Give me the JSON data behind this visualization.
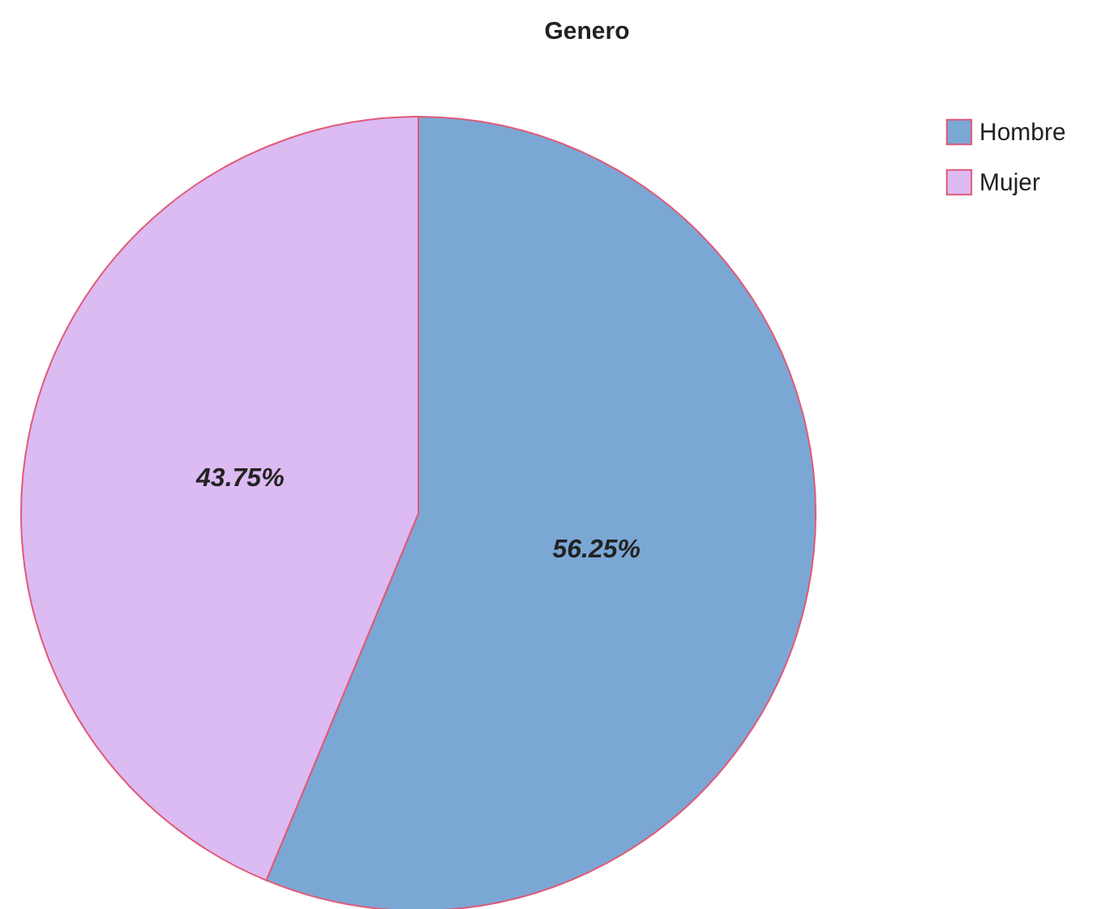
{
  "chart_data": {
    "type": "pie",
    "title": "Genero",
    "categories": [
      "Hombre",
      "Mujer"
    ],
    "values": [
      56.25,
      43.75
    ],
    "colors": [
      "#7ba7d5",
      "#dcbaf2"
    ],
    "value_labels": [
      "56.25%",
      "43.75%"
    ],
    "legend": "top right"
  }
}
